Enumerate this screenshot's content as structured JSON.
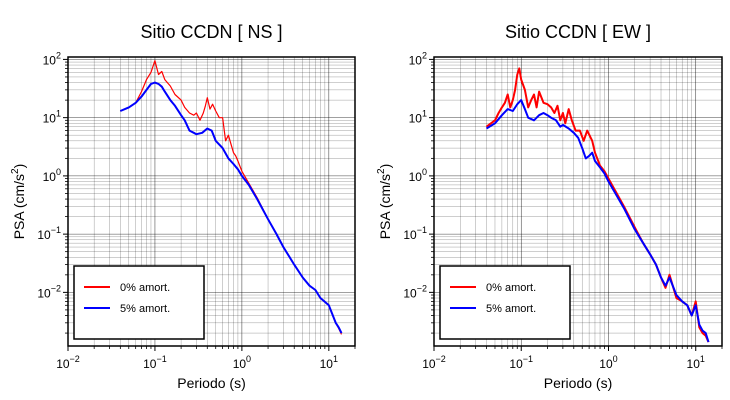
{
  "chart_data": [
    {
      "type": "line",
      "title": "Sitio CCDN [ NS ]",
      "xlabel": "Periodo (s)",
      "ylabel_main": "PSA (cm/s",
      "ylabel_sup": "2",
      "ylabel_tail": ")",
      "x_scale": "log",
      "y_scale": "log",
      "xlim": [
        0.01,
        20
      ],
      "ylim": [
        0.0012,
        110
      ],
      "x_ticks": [
        {
          "value": 0.01,
          "base": "10",
          "exp": "−2"
        },
        {
          "value": 0.1,
          "base": "10",
          "exp": "−1"
        },
        {
          "value": 1,
          "base": "10",
          "exp": "0"
        },
        {
          "value": 10,
          "base": "10",
          "exp": "1"
        }
      ],
      "y_ticks": [
        {
          "value": 0.01,
          "base": "10",
          "exp": "−2"
        },
        {
          "value": 0.1,
          "base": "10",
          "exp": "−1"
        },
        {
          "value": 1,
          "base": "10",
          "exp": "0"
        },
        {
          "value": 10,
          "base": "10",
          "exp": "1"
        },
        {
          "value": 100,
          "base": "10",
          "exp": "2"
        }
      ],
      "grid": true,
      "legend_position": "bottom-left",
      "series": [
        {
          "name": "0% amort.",
          "color": "#ff0000",
          "line_width": 1.2,
          "points": [
            [
              0.04,
              13
            ],
            [
              0.05,
              15
            ],
            [
              0.06,
              18
            ],
            [
              0.07,
              28
            ],
            [
              0.08,
              45
            ],
            [
              0.09,
              60
            ],
            [
              0.1,
              95
            ],
            [
              0.11,
              55
            ],
            [
              0.12,
              62
            ],
            [
              0.13,
              45
            ],
            [
              0.15,
              35
            ],
            [
              0.17,
              25
            ],
            [
              0.2,
              20
            ],
            [
              0.22,
              15
            ],
            [
              0.25,
              12
            ],
            [
              0.28,
              11
            ],
            [
              0.3,
              12
            ],
            [
              0.33,
              9
            ],
            [
              0.36,
              12
            ],
            [
              0.38,
              16
            ],
            [
              0.4,
              22
            ],
            [
              0.43,
              14
            ],
            [
              0.46,
              17
            ],
            [
              0.5,
              13
            ],
            [
              0.55,
              10
            ],
            [
              0.6,
              10
            ],
            [
              0.65,
              4
            ],
            [
              0.7,
              5
            ],
            [
              0.75,
              3.5
            ],
            [
              0.8,
              2.5
            ],
            [
              0.85,
              2.2
            ],
            [
              0.9,
              1.8
            ],
            [
              1,
              1.2
            ],
            [
              1.2,
              0.75
            ],
            [
              1.5,
              0.42
            ],
            [
              2,
              0.18
            ],
            [
              2.5,
              0.1
            ],
            [
              3,
              0.06
            ],
            [
              4,
              0.03
            ],
            [
              5,
              0.018
            ],
            [
              6,
              0.013
            ],
            [
              7,
              0.011
            ],
            [
              8,
              0.008
            ],
            [
              10,
              0.006
            ],
            [
              12,
              0.003
            ],
            [
              13,
              0.0024
            ],
            [
              14,
              0.0019
            ]
          ]
        },
        {
          "name": "5% amort.",
          "color": "#0000ff",
          "line_width": 2,
          "points": [
            [
              0.04,
              13
            ],
            [
              0.05,
              15
            ],
            [
              0.06,
              18
            ],
            [
              0.07,
              23
            ],
            [
              0.08,
              30
            ],
            [
              0.09,
              38
            ],
            [
              0.1,
              40
            ],
            [
              0.11,
              38
            ],
            [
              0.12,
              34
            ],
            [
              0.13,
              28
            ],
            [
              0.15,
              20
            ],
            [
              0.17,
              16
            ],
            [
              0.2,
              11
            ],
            [
              0.22,
              9
            ],
            [
              0.25,
              6
            ],
            [
              0.28,
              5.5
            ],
            [
              0.3,
              5.2
            ],
            [
              0.35,
              5.5
            ],
            [
              0.4,
              6.5
            ],
            [
              0.45,
              6
            ],
            [
              0.5,
              4
            ],
            [
              0.6,
              3
            ],
            [
              0.7,
              2
            ],
            [
              0.8,
              1.6
            ],
            [
              0.9,
              1.3
            ],
            [
              1,
              1
            ],
            [
              1.2,
              0.7
            ],
            [
              1.5,
              0.4
            ],
            [
              2,
              0.18
            ],
            [
              2.5,
              0.1
            ],
            [
              3,
              0.06
            ],
            [
              4,
              0.03
            ],
            [
              5,
              0.018
            ],
            [
              6,
              0.013
            ],
            [
              7,
              0.011
            ],
            [
              8,
              0.008
            ],
            [
              10,
              0.006
            ],
            [
              12,
              0.003
            ],
            [
              13,
              0.0025
            ],
            [
              14,
              0.002
            ]
          ]
        }
      ]
    },
    {
      "type": "line",
      "title": "Sitio CCDN [ EW ]",
      "xlabel": "Periodo (s)",
      "ylabel_main": "PSA (cm/s",
      "ylabel_sup": "2",
      "ylabel_tail": ")",
      "x_scale": "log",
      "y_scale": "log",
      "xlim": [
        0.01,
        20
      ],
      "ylim": [
        0.0012,
        110
      ],
      "x_ticks": [
        {
          "value": 0.01,
          "base": "10",
          "exp": "−2"
        },
        {
          "value": 0.1,
          "base": "10",
          "exp": "−1"
        },
        {
          "value": 1,
          "base": "10",
          "exp": "0"
        },
        {
          "value": 10,
          "base": "10",
          "exp": "1"
        }
      ],
      "y_ticks": [
        {
          "value": 0.01,
          "base": "10",
          "exp": "−2"
        },
        {
          "value": 0.1,
          "base": "10",
          "exp": "−1"
        },
        {
          "value": 1,
          "base": "10",
          "exp": "0"
        },
        {
          "value": 10,
          "base": "10",
          "exp": "1"
        },
        {
          "value": 100,
          "base": "10",
          "exp": "2"
        }
      ],
      "grid": true,
      "legend_position": "bottom-left",
      "series": [
        {
          "name": "0% amort.",
          "color": "#ff0000",
          "line_width": 2,
          "points": [
            [
              0.04,
              7
            ],
            [
              0.045,
              8
            ],
            [
              0.05,
              9
            ],
            [
              0.055,
              12
            ],
            [
              0.06,
              15
            ],
            [
              0.065,
              18
            ],
            [
              0.07,
              25
            ],
            [
              0.075,
              15
            ],
            [
              0.08,
              20
            ],
            [
              0.085,
              30
            ],
            [
              0.09,
              55
            ],
            [
              0.095,
              70
            ],
            [
              0.1,
              45
            ],
            [
              0.11,
              30
            ],
            [
              0.12,
              15
            ],
            [
              0.13,
              20
            ],
            [
              0.14,
              25
            ],
            [
              0.15,
              15
            ],
            [
              0.16,
              28
            ],
            [
              0.18,
              18
            ],
            [
              0.2,
              17
            ],
            [
              0.22,
              15
            ],
            [
              0.24,
              12
            ],
            [
              0.26,
              16
            ],
            [
              0.28,
              9
            ],
            [
              0.3,
              12
            ],
            [
              0.32,
              8
            ],
            [
              0.35,
              14
            ],
            [
              0.38,
              9
            ],
            [
              0.42,
              6
            ],
            [
              0.47,
              6
            ],
            [
              0.52,
              4
            ],
            [
              0.57,
              6
            ],
            [
              0.65,
              4
            ],
            [
              0.7,
              2.5
            ],
            [
              0.8,
              1.5
            ],
            [
              0.9,
              1.2
            ],
            [
              1,
              0.9
            ],
            [
              1.2,
              0.55
            ],
            [
              1.5,
              0.3
            ],
            [
              2,
              0.13
            ],
            [
              2.5,
              0.07
            ],
            [
              3,
              0.045
            ],
            [
              3.5,
              0.03
            ],
            [
              4,
              0.018
            ],
            [
              4.5,
              0.012
            ],
            [
              5,
              0.02
            ],
            [
              6,
              0.008
            ],
            [
              7,
              0.007
            ],
            [
              8,
              0.006
            ],
            [
              9,
              0.004
            ],
            [
              10,
              0.007
            ],
            [
              11,
              0.0025
            ],
            [
              12,
              0.002
            ],
            [
              13,
              0.0018
            ],
            [
              14,
              0.0014
            ]
          ]
        },
        {
          "name": "5% amort.",
          "color": "#0000ff",
          "line_width": 2,
          "points": [
            [
              0.04,
              6.5
            ],
            [
              0.05,
              8
            ],
            [
              0.06,
              11
            ],
            [
              0.07,
              14
            ],
            [
              0.08,
              13
            ],
            [
              0.09,
              17
            ],
            [
              0.1,
              20
            ],
            [
              0.11,
              14
            ],
            [
              0.12,
              10
            ],
            [
              0.14,
              9
            ],
            [
              0.16,
              11
            ],
            [
              0.18,
              12
            ],
            [
              0.2,
              11
            ],
            [
              0.22,
              10
            ],
            [
              0.25,
              9
            ],
            [
              0.28,
              7
            ],
            [
              0.3,
              7.5
            ],
            [
              0.35,
              6.5
            ],
            [
              0.4,
              5.5
            ],
            [
              0.45,
              4.5
            ],
            [
              0.5,
              3
            ],
            [
              0.55,
              2
            ],
            [
              0.6,
              2.2
            ],
            [
              0.65,
              2.5
            ],
            [
              0.7,
              1.8
            ],
            [
              0.8,
              1.4
            ],
            [
              0.9,
              1.1
            ],
            [
              1,
              0.8
            ],
            [
              1.2,
              0.5
            ],
            [
              1.5,
              0.28
            ],
            [
              2,
              0.12
            ],
            [
              2.5,
              0.07
            ],
            [
              3,
              0.045
            ],
            [
              3.5,
              0.03
            ],
            [
              4,
              0.018
            ],
            [
              4.5,
              0.013
            ],
            [
              5,
              0.018
            ],
            [
              6,
              0.009
            ],
            [
              7,
              0.007
            ],
            [
              8,
              0.006
            ],
            [
              9,
              0.004
            ],
            [
              10,
              0.006
            ],
            [
              11,
              0.0028
            ],
            [
              12,
              0.0022
            ],
            [
              13,
              0.002
            ],
            [
              14,
              0.0014
            ]
          ]
        }
      ]
    }
  ]
}
